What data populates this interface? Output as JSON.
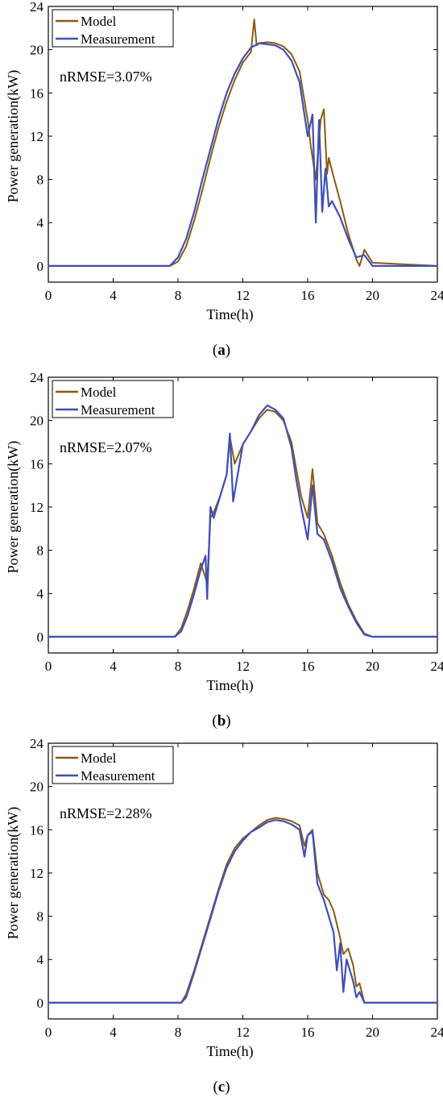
{
  "chart_data": [
    {
      "type": "line",
      "caption": "(a)",
      "caption_letter": "a",
      "xlabel": "Time(h)",
      "ylabel": "Power generation(kW)",
      "xlim": [
        0,
        24
      ],
      "ylim": [
        -1.5,
        24
      ],
      "xticks": [
        "0",
        "4",
        "8",
        "12",
        "16",
        "20",
        "24"
      ],
      "yticks": [
        "0",
        "4",
        "8",
        "12",
        "16",
        "20",
        "24"
      ],
      "annotation": "nRMSE=3.07%",
      "legend_position": "top-left",
      "colors": {
        "model": "#8B5A12",
        "measurement": "#3F4FB8"
      },
      "series": [
        {
          "name": "Model",
          "x": [
            0,
            7.5,
            8,
            8.5,
            9,
            9.5,
            10,
            10.5,
            11,
            11.5,
            12,
            12.5,
            12.7,
            12.85,
            13,
            13.5,
            14,
            14.5,
            15,
            15.5,
            16,
            16.2,
            16.5,
            16.8,
            17,
            17.2,
            17.3,
            17.5,
            18,
            18.5,
            19,
            19.2,
            19.5,
            20,
            24
          ],
          "y": [
            0,
            0,
            0.4,
            1.8,
            4.2,
            7.0,
            10.0,
            12.8,
            15.2,
            17.2,
            18.8,
            19.8,
            22.8,
            20.4,
            20.6,
            20.7,
            20.6,
            20.3,
            19.6,
            18.0,
            13.5,
            11.0,
            8.0,
            13.5,
            14.5,
            8.5,
            10.0,
            8.8,
            6.0,
            3.0,
            0.6,
            0.0,
            1.5,
            0.3,
            0
          ]
        },
        {
          "name": "Measurement",
          "x": [
            0,
            7.5,
            8,
            8.5,
            9,
            9.5,
            10,
            10.5,
            11,
            11.5,
            12,
            12.5,
            13,
            13.5,
            14,
            14.5,
            15,
            15.5,
            16,
            16.3,
            16.5,
            16.7,
            16.9,
            17.1,
            17.3,
            17.5,
            18,
            18.5,
            19,
            19.5,
            20,
            24
          ],
          "y": [
            0,
            0,
            0.8,
            2.5,
            5.0,
            8.0,
            10.8,
            13.6,
            16.0,
            17.8,
            19.2,
            20.2,
            20.6,
            20.5,
            20.4,
            20.0,
            19.0,
            17.0,
            12.0,
            14.0,
            4.0,
            13.5,
            5.0,
            9.0,
            5.5,
            6.0,
            4.5,
            2.5,
            0.8,
            1.0,
            0.0,
            0
          ]
        }
      ]
    },
    {
      "type": "line",
      "caption": "(b)",
      "caption_letter": "b",
      "xlabel": "Time(h)",
      "ylabel": "Power generation(kW)",
      "xlim": [
        0,
        24
      ],
      "ylim": [
        -1.5,
        24
      ],
      "xticks": [
        "0",
        "4",
        "8",
        "12",
        "16",
        "20",
        "24"
      ],
      "yticks": [
        "0",
        "4",
        "8",
        "12",
        "16",
        "20",
        "24"
      ],
      "annotation": "nRMSE=2.07%",
      "legend_position": "top-left",
      "colors": {
        "model": "#8B5A12",
        "measurement": "#3F4FB8"
      },
      "series": [
        {
          "name": "Model",
          "x": [
            0,
            7.8,
            8.2,
            8.6,
            9,
            9.4,
            9.8,
            10,
            10.2,
            10.6,
            11,
            11.2,
            11.5,
            12,
            12.5,
            13,
            13.5,
            14,
            14.5,
            15,
            15.3,
            15.6,
            16,
            16.3,
            16.6,
            17,
            17.5,
            18,
            18.5,
            19,
            19.5,
            20,
            24
          ],
          "y": [
            0,
            0,
            0.8,
            2.5,
            4.5,
            6.8,
            5.0,
            11.0,
            11.5,
            13.0,
            15.0,
            18.5,
            16.0,
            17.8,
            19.0,
            20.2,
            21.0,
            20.8,
            20.0,
            18.0,
            15.5,
            13.0,
            11.0,
            15.5,
            10.5,
            9.5,
            7.5,
            5.0,
            3.0,
            1.5,
            0.3,
            0,
            0
          ]
        },
        {
          "name": "Measurement",
          "x": [
            0,
            7.8,
            8.2,
            8.6,
            9,
            9.4,
            9.7,
            9.8,
            10,
            10.2,
            10.6,
            11,
            11.2,
            11.4,
            12,
            12.5,
            13,
            13.5,
            14,
            14.5,
            15,
            15.3,
            15.6,
            16,
            16.3,
            16.6,
            17,
            17.5,
            18,
            18.5,
            19,
            19.5,
            20,
            24
          ],
          "y": [
            0,
            0,
            0.5,
            2.0,
            4.0,
            6.2,
            7.5,
            3.5,
            12.0,
            11.0,
            13.0,
            15.0,
            18.8,
            12.5,
            17.8,
            19.0,
            20.5,
            21.4,
            21.0,
            20.2,
            17.5,
            14.5,
            12.0,
            9.0,
            14.0,
            9.5,
            9.0,
            7.0,
            4.5,
            2.8,
            1.3,
            0.2,
            0,
            0
          ]
        }
      ]
    },
    {
      "type": "line",
      "caption": "(c)",
      "caption_letter": "c",
      "xlabel": "Time(h)",
      "ylabel": "Power generation(kW)",
      "xlim": [
        0,
        24
      ],
      "ylim": [
        -1.5,
        24
      ],
      "xticks": [
        "0",
        "4",
        "8",
        "12",
        "16",
        "20",
        "24"
      ],
      "yticks": [
        "0",
        "4",
        "8",
        "12",
        "16",
        "20",
        "24"
      ],
      "annotation": "nRMSE=2.28%",
      "legend_position": "top-left",
      "colors": {
        "model": "#8B5A12",
        "measurement": "#3F4FB8"
      },
      "series": [
        {
          "name": "Model",
          "x": [
            0,
            8.2,
            8.5,
            9,
            9.5,
            10,
            10.5,
            11,
            11.5,
            12,
            12.5,
            13,
            13.5,
            14,
            14.5,
            15,
            15.5,
            15.8,
            16,
            16.3,
            16.6,
            17,
            17.3,
            17.6,
            18,
            18.2,
            18.5,
            18.8,
            19,
            19.2,
            19.5,
            24
          ],
          "y": [
            0,
            0,
            0.8,
            3.0,
            5.5,
            8.0,
            10.5,
            12.8,
            14.3,
            15.2,
            15.8,
            16.4,
            16.9,
            17.1,
            17.0,
            16.8,
            16.4,
            14.5,
            15.5,
            16.0,
            12.0,
            10.0,
            9.5,
            8.5,
            6.0,
            4.5,
            5.0,
            3.5,
            1.5,
            1.8,
            0,
            0
          ]
        },
        {
          "name": "Measurement",
          "x": [
            0,
            8.2,
            8.5,
            9,
            9.5,
            10,
            10.5,
            11,
            11.5,
            12,
            12.5,
            13,
            13.5,
            14,
            14.5,
            15,
            15.5,
            15.8,
            16,
            16.3,
            16.6,
            17,
            17.3,
            17.6,
            17.8,
            18,
            18.2,
            18.4,
            18.8,
            19,
            19.2,
            19.5,
            24
          ],
          "y": [
            0,
            0,
            0.5,
            2.8,
            5.3,
            7.8,
            10.3,
            12.5,
            14.0,
            15.0,
            15.8,
            16.2,
            16.7,
            16.9,
            16.8,
            16.5,
            16.0,
            13.5,
            15.5,
            15.8,
            11.0,
            9.5,
            8.0,
            6.5,
            3.0,
            5.5,
            1.0,
            4.0,
            2.0,
            0.5,
            1.0,
            0,
            0
          ]
        }
      ]
    }
  ]
}
